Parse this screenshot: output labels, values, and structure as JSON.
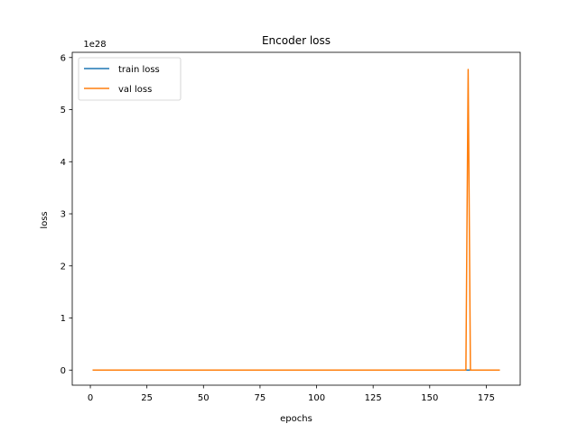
{
  "chart_data": {
    "type": "line",
    "title": "Encoder loss",
    "xlabel": "epochs",
    "ylabel": "loss",
    "y_offset_label": "1e28",
    "xlim": [
      -8,
      190
    ],
    "ylim": [
      -0.29,
      6.1
    ],
    "x_ticks": [
      0,
      25,
      50,
      75,
      100,
      125,
      150,
      175
    ],
    "x_tick_labels": [
      "0",
      "25",
      "50",
      "75",
      "100",
      "125",
      "150",
      "175"
    ],
    "y_ticks": [
      0,
      1,
      2,
      3,
      4,
      5,
      6
    ],
    "y_tick_labels": [
      "0",
      "1",
      "2",
      "3",
      "4",
      "5",
      "6"
    ],
    "grid": false,
    "legend_position": "top-left",
    "series": [
      {
        "name": "train loss",
        "color": "#1f77b4",
        "x": [
          1,
          181
        ],
        "y": [
          0,
          0
        ]
      },
      {
        "name": "val loss",
        "color": "#ff7f0e",
        "x": [
          1,
          166,
          167,
          168,
          181
        ],
        "y": [
          0,
          0,
          5.77,
          0,
          0
        ]
      }
    ]
  }
}
